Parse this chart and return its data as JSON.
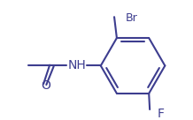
{
  "background_color": "#ffffff",
  "line_color": "#3d3d8f",
  "line_width": 1.5,
  "figsize": [
    2.18,
    1.36
  ],
  "dpi": 100,
  "xlim": [
    0,
    218
  ],
  "ylim": [
    0,
    136
  ]
}
